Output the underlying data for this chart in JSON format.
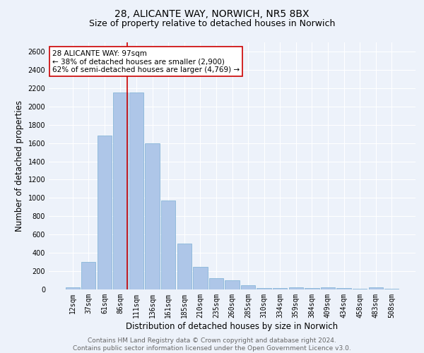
{
  "title_line1": "28, ALICANTE WAY, NORWICH, NR5 8BX",
  "title_line2": "Size of property relative to detached houses in Norwich",
  "xlabel": "Distribution of detached houses by size in Norwich",
  "ylabel": "Number of detached properties",
  "categories": [
    "12sqm",
    "37sqm",
    "61sqm",
    "86sqm",
    "111sqm",
    "136sqm",
    "161sqm",
    "185sqm",
    "210sqm",
    "235sqm",
    "260sqm",
    "285sqm",
    "310sqm",
    "334sqm",
    "359sqm",
    "384sqm",
    "409sqm",
    "434sqm",
    "458sqm",
    "483sqm",
    "508sqm"
  ],
  "values": [
    20,
    300,
    1680,
    2150,
    2150,
    1600,
    970,
    500,
    245,
    120,
    100,
    45,
    18,
    15,
    20,
    15,
    20,
    15,
    5,
    20,
    5
  ],
  "bar_color": "#aec6e8",
  "bar_edge_color": "#7aafd4",
  "vline_color": "#cc0000",
  "vline_x_index": 3.42,
  "annotation_text": "28 ALICANTE WAY: 97sqm\n← 38% of detached houses are smaller (2,900)\n62% of semi-detached houses are larger (4,769) →",
  "annotation_box_facecolor": "#ffffff",
  "annotation_box_edgecolor": "#cc0000",
  "ylim": [
    0,
    2700
  ],
  "yticks": [
    0,
    200,
    400,
    600,
    800,
    1000,
    1200,
    1400,
    1600,
    1800,
    2000,
    2200,
    2400,
    2600
  ],
  "footer_text": "Contains HM Land Registry data © Crown copyright and database right 2024.\nContains public sector information licensed under the Open Government Licence v3.0.",
  "bg_color": "#edf2fa",
  "grid_color": "#ffffff",
  "title_fontsize": 10,
  "subtitle_fontsize": 9,
  "axis_label_fontsize": 8.5,
  "tick_fontsize": 7,
  "annotation_fontsize": 7.5,
  "footer_fontsize": 6.5,
  "footer_color": "#666666"
}
